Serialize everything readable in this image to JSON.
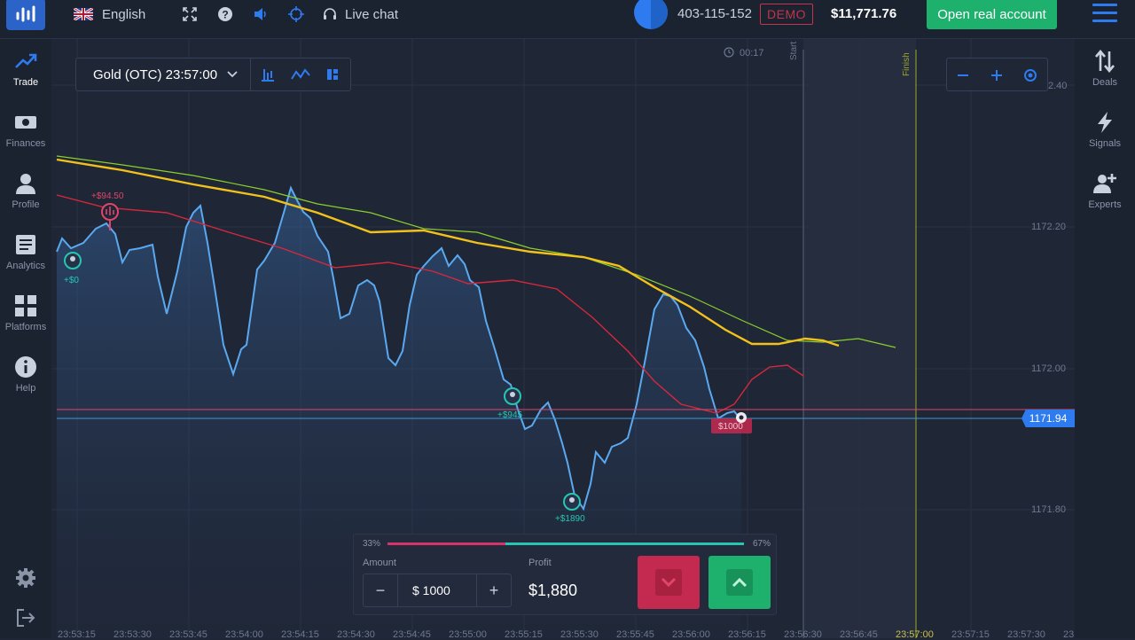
{
  "header": {
    "language": "English",
    "live_chat": "Live chat",
    "account_id": "403-115-152",
    "mode_badge": "DEMO",
    "balance": "$11,771.76",
    "open_real_label": "Open real account"
  },
  "sidebar_left": {
    "items": [
      {
        "label": "Trade",
        "icon": "trend-up-icon"
      },
      {
        "label": "Finances",
        "icon": "banknote-icon"
      },
      {
        "label": "Profile",
        "icon": "user-icon"
      },
      {
        "label": "Analytics",
        "icon": "document-icon"
      },
      {
        "label": "Platforms",
        "icon": "grid-icon"
      },
      {
        "label": "Help",
        "icon": "info-icon"
      }
    ]
  },
  "sidebar_right": {
    "items": [
      {
        "label": "Deals",
        "icon": "swap-arrows-icon"
      },
      {
        "label": "Signals",
        "icon": "lightning-icon"
      },
      {
        "label": "Experts",
        "icon": "add-user-icon"
      }
    ]
  },
  "chart": {
    "asset": "Gold (OTC) 23:57:00",
    "timer": "00:17",
    "start_label": "Start",
    "finish_label": "Finish",
    "price_labels": [
      "2.40",
      "1172.20",
      "1172.00",
      "1171.80"
    ],
    "current_price": "1171.94",
    "time_labels": [
      "23:53:15",
      "23:53:30",
      "23:53:45",
      "23:54:00",
      "23:54:15",
      "23:54:30",
      "23:54:45",
      "23:55:00",
      "23:55:15",
      "23:55:30",
      "23:55:45",
      "23:56:00",
      "23:56:15",
      "23:56:30",
      "23:56:45",
      "23:57:00",
      "23:57:15",
      "23:57:30",
      "23"
    ],
    "trade_markers": [
      "+$94.50",
      "+$0",
      "+$945",
      "+$1890",
      "$1000"
    ],
    "colors": {
      "line": "#5aa9f0",
      "ma_yellow": "#f2c21b",
      "ma_green": "#8ccf2c",
      "ma_red": "#d6283c"
    }
  },
  "trade_panel": {
    "pct_down": "33%",
    "pct_up": "67%",
    "amount_label": "Amount",
    "amount_value": "$ 1000",
    "minus": "−",
    "plus": "+",
    "profit_label": "Profit",
    "profit_value": "$1,880"
  }
}
